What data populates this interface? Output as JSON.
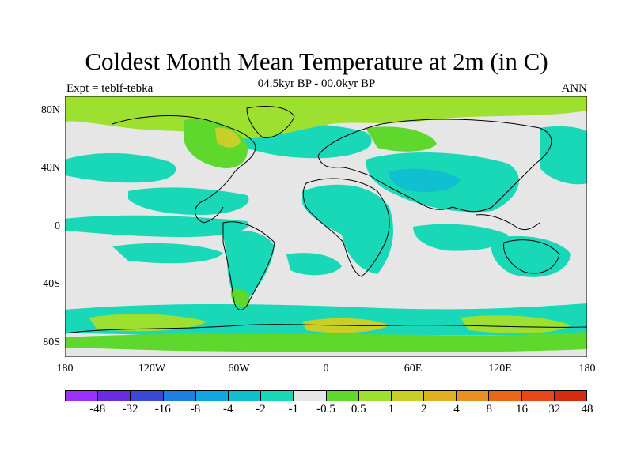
{
  "title": "Coldest Month Mean Temperature at 2m (in C)",
  "subtitle": "04.5kyr BP - 00.0kyr BP",
  "left_string": "Expt = teblf-tebka",
  "right_string": "ANN",
  "lat_labels": [
    "80N",
    "40N",
    "0",
    "40S",
    "80S"
  ],
  "lon_labels": [
    "180",
    "120W",
    "60W",
    "0",
    "60E",
    "120E",
    "180"
  ],
  "colorbar": {
    "colors": [
      "#9b30ff",
      "#6a2ce0",
      "#3a48d8",
      "#1e7fe0",
      "#12a6e0",
      "#10c0d0",
      "#18d8b8",
      "#e6e6e6",
      "#5ed82c",
      "#9ee030",
      "#c8d028",
      "#e0b020",
      "#e89020",
      "#e86818",
      "#e84818",
      "#d82c10"
    ],
    "labels": [
      "-48",
      "-32",
      "-16",
      "-8",
      "-4",
      "-2",
      "-1",
      "-0.5",
      "0.5",
      "1",
      "2",
      "4",
      "8",
      "16",
      "32",
      "48"
    ]
  }
}
